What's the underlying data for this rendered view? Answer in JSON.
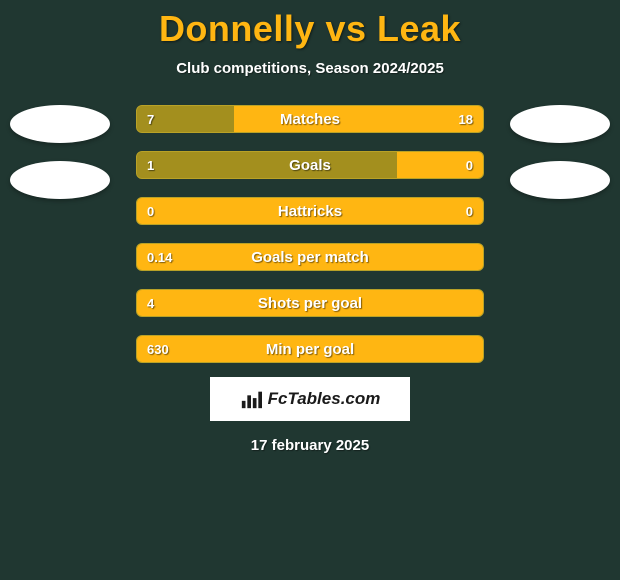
{
  "title": "Donnelly vs Leak",
  "subtitle": "Club competitions, Season 2024/2025",
  "date": "17 february 2025",
  "logo_text": "FcTables.com",
  "colors": {
    "background": "#203731",
    "title": "#ffb612",
    "bar_dark": "#a38f1e",
    "bar_bright": "#ffb612",
    "text": "#ffffff"
  },
  "avatars": {
    "left_count": 2,
    "right_count": 2
  },
  "bars": [
    {
      "label": "Matches",
      "left_val": "7",
      "right_val": "18",
      "left_pct": 28,
      "right_pct": 72,
      "right_bright": true,
      "left_bright": false,
      "show_right": true
    },
    {
      "label": "Goals",
      "left_val": "1",
      "right_val": "0",
      "left_pct": 75,
      "right_pct": 25,
      "right_bright": true,
      "left_bright": false,
      "show_right": true
    },
    {
      "label": "Hattricks",
      "left_val": "0",
      "right_val": "0",
      "left_pct": 100,
      "right_pct": 0,
      "right_bright": false,
      "left_bright": true,
      "show_right": true
    },
    {
      "label": "Goals per match",
      "left_val": "0.14",
      "right_val": "",
      "left_pct": 100,
      "right_pct": 0,
      "right_bright": false,
      "left_bright": true,
      "show_right": false
    },
    {
      "label": "Shots per goal",
      "left_val": "4",
      "right_val": "",
      "left_pct": 100,
      "right_pct": 0,
      "right_bright": false,
      "left_bright": true,
      "show_right": false
    },
    {
      "label": "Min per goal",
      "left_val": "630",
      "right_val": "",
      "left_pct": 100,
      "right_pct": 0,
      "right_bright": false,
      "left_bright": true,
      "show_right": false
    }
  ]
}
